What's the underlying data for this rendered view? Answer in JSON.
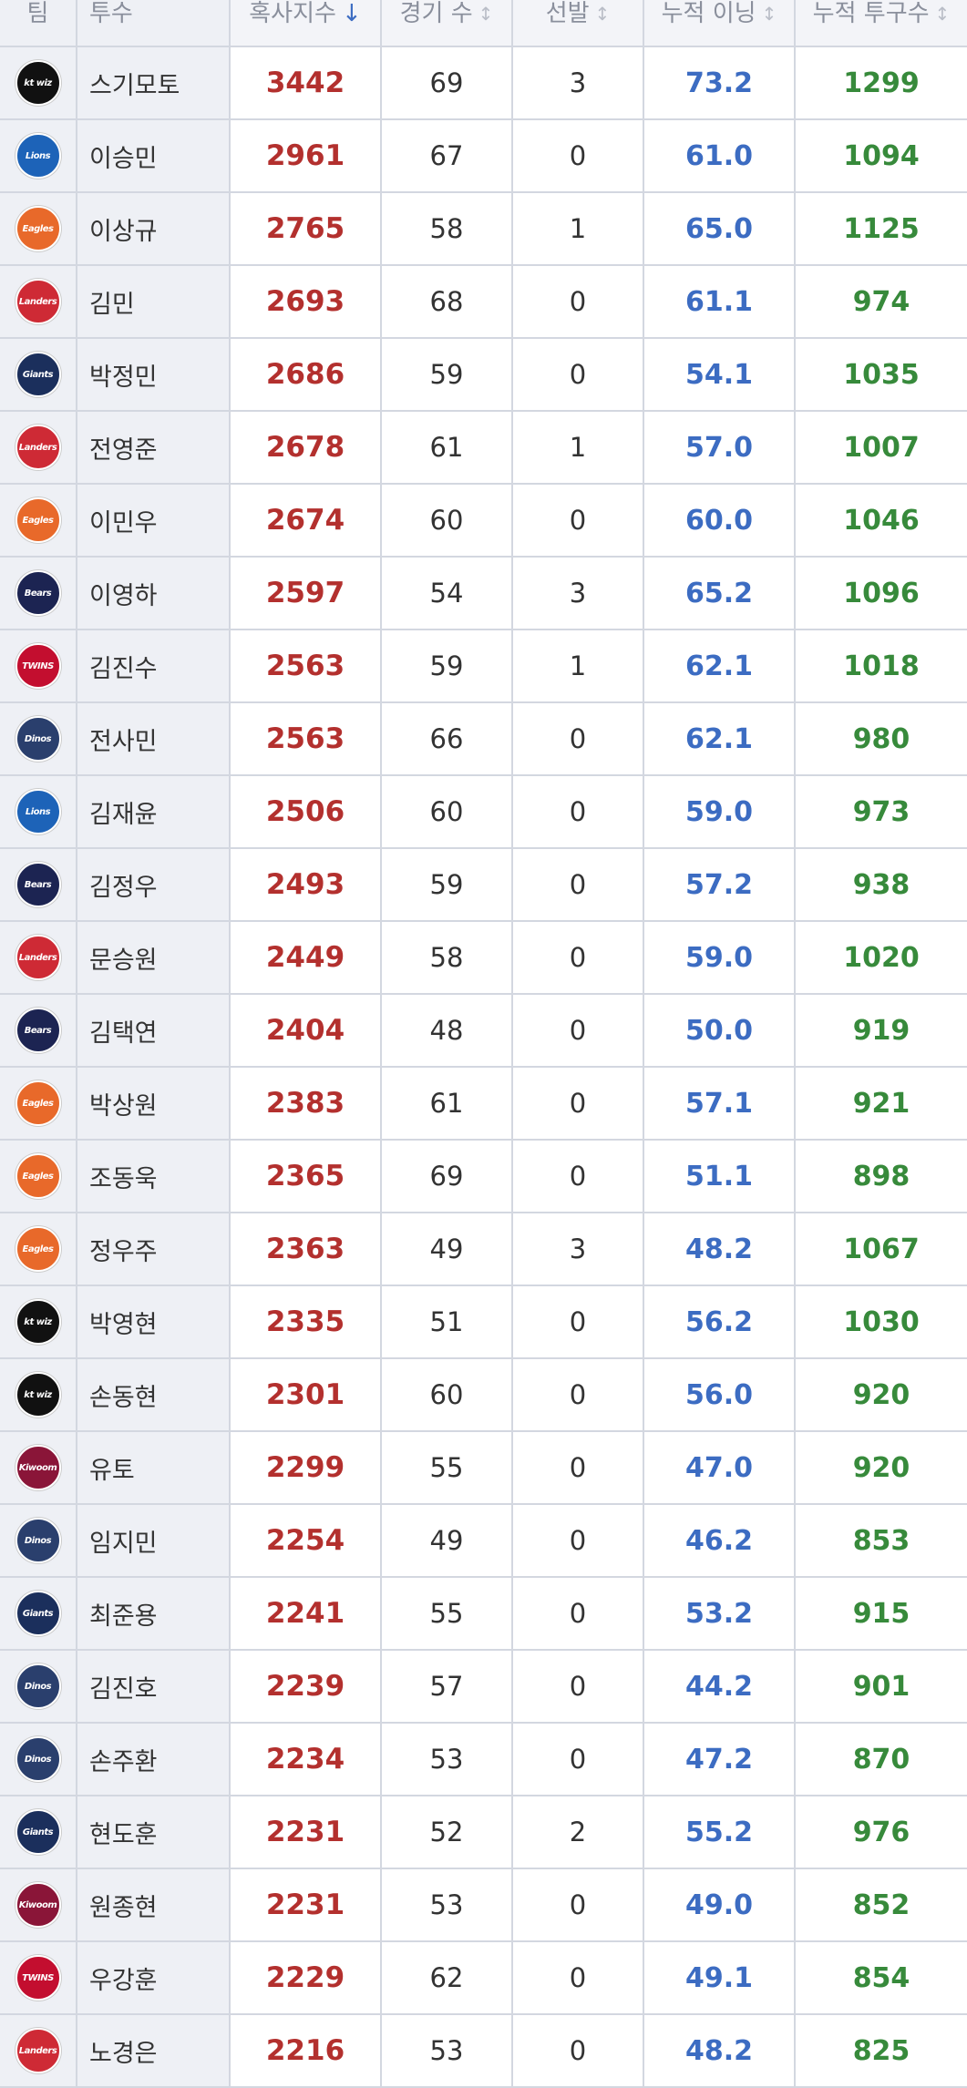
{
  "header": [
    "팀",
    "투수",
    "혹사지수",
    "경기 수",
    "선발",
    "누적 이닝",
    "누적 투구수"
  ],
  "rows": [
    {
      "team": "kt wiz",
      "team_color": "#111111",
      "pitcher": "스기모토",
      "abuse_index": 3442,
      "games": 69,
      "starts": 3,
      "innings": "73.2",
      "pitches": 1299
    },
    {
      "team": "Lions",
      "team_color": "#1d63b8",
      "pitcher": "이승민",
      "abuse_index": 2961,
      "games": 67,
      "starts": 0,
      "innings": "61.0",
      "pitches": 1094
    },
    {
      "team": "Eagles",
      "team_color": "#e8692a",
      "pitcher": "이상규",
      "abuse_index": 2765,
      "games": 58,
      "starts": 1,
      "innings": "65.0",
      "pitches": 1125
    },
    {
      "team": "Landers",
      "team_color": "#ce2a35",
      "pitcher": "김민",
      "abuse_index": 2693,
      "games": 68,
      "starts": 0,
      "innings": "61.1",
      "pitches": 974
    },
    {
      "team": "Giants",
      "team_color": "#1b2f5c",
      "pitcher": "박정민",
      "abuse_index": 2686,
      "games": 59,
      "starts": 0,
      "innings": "54.1",
      "pitches": 1035
    },
    {
      "team": "Landers",
      "team_color": "#ce2a35",
      "pitcher": "전영준",
      "abuse_index": 2678,
      "games": 61,
      "starts": 1,
      "innings": "57.0",
      "pitches": 1007
    },
    {
      "team": "Eagles",
      "team_color": "#e8692a",
      "pitcher": "이민우",
      "abuse_index": 2674,
      "games": 60,
      "starts": 0,
      "innings": "60.0",
      "pitches": 1046
    },
    {
      "team": "Bears",
      "team_color": "#1c2452",
      "pitcher": "이영하",
      "abuse_index": 2597,
      "games": 54,
      "starts": 3,
      "innings": "65.2",
      "pitches": 1096
    },
    {
      "team": "TWINS",
      "team_color": "#c30e2f",
      "pitcher": "김진수",
      "abuse_index": 2563,
      "games": 59,
      "starts": 1,
      "innings": "62.1",
      "pitches": 1018
    },
    {
      "team": "Dinos",
      "team_color": "#2a3f6d",
      "pitcher": "전사민",
      "abuse_index": 2563,
      "games": 66,
      "starts": 0,
      "innings": "62.1",
      "pitches": 980
    },
    {
      "team": "Lions",
      "team_color": "#1d63b8",
      "pitcher": "김재윤",
      "abuse_index": 2506,
      "games": 60,
      "starts": 0,
      "innings": "59.0",
      "pitches": 973
    },
    {
      "team": "Bears",
      "team_color": "#1c2452",
      "pitcher": "김정우",
      "abuse_index": 2493,
      "games": 59,
      "starts": 0,
      "innings": "57.2",
      "pitches": 938
    },
    {
      "team": "Landers",
      "team_color": "#ce2a35",
      "pitcher": "문승원",
      "abuse_index": 2449,
      "games": 58,
      "starts": 0,
      "innings": "59.0",
      "pitches": 1020
    },
    {
      "team": "Bears",
      "team_color": "#1c2452",
      "pitcher": "김택연",
      "abuse_index": 2404,
      "games": 48,
      "starts": 0,
      "innings": "50.0",
      "pitches": 919
    },
    {
      "team": "Eagles",
      "team_color": "#e8692a",
      "pitcher": "박상원",
      "abuse_index": 2383,
      "games": 61,
      "starts": 0,
      "innings": "57.1",
      "pitches": 921
    },
    {
      "team": "Eagles",
      "team_color": "#e8692a",
      "pitcher": "조동욱",
      "abuse_index": 2365,
      "games": 69,
      "starts": 0,
      "innings": "51.1",
      "pitches": 898
    },
    {
      "team": "Eagles",
      "team_color": "#e8692a",
      "pitcher": "정우주",
      "abuse_index": 2363,
      "games": 49,
      "starts": 3,
      "innings": "48.2",
      "pitches": 1067
    },
    {
      "team": "kt wiz",
      "team_color": "#111111",
      "pitcher": "박영현",
      "abuse_index": 2335,
      "games": 51,
      "starts": 0,
      "innings": "56.2",
      "pitches": 1030
    },
    {
      "team": "kt wiz",
      "team_color": "#111111",
      "pitcher": "손동현",
      "abuse_index": 2301,
      "games": 60,
      "starts": 0,
      "innings": "56.0",
      "pitches": 920
    },
    {
      "team": "Kiwoom",
      "team_color": "#8a1538",
      "pitcher": "유토",
      "abuse_index": 2299,
      "games": 55,
      "starts": 0,
      "innings": "47.0",
      "pitches": 920
    },
    {
      "team": "Dinos",
      "team_color": "#2a3f6d",
      "pitcher": "임지민",
      "abuse_index": 2254,
      "games": 49,
      "starts": 0,
      "innings": "46.2",
      "pitches": 853
    },
    {
      "team": "Giants",
      "team_color": "#1b2f5c",
      "pitcher": "최준용",
      "abuse_index": 2241,
      "games": 55,
      "starts": 0,
      "innings": "53.2",
      "pitches": 915
    },
    {
      "team": "Dinos",
      "team_color": "#2a3f6d",
      "pitcher": "김진호",
      "abuse_index": 2239,
      "games": 57,
      "starts": 0,
      "innings": "44.2",
      "pitches": 901
    },
    {
      "team": "Dinos",
      "team_color": "#2a3f6d",
      "pitcher": "손주환",
      "abuse_index": 2234,
      "games": 53,
      "starts": 0,
      "innings": "47.2",
      "pitches": 870
    },
    {
      "team": "Giants",
      "team_color": "#1b2f5c",
      "pitcher": "현도훈",
      "abuse_index": 2231,
      "games": 52,
      "starts": 2,
      "innings": "55.2",
      "pitches": 976
    },
    {
      "team": "Kiwoom",
      "team_color": "#8a1538",
      "pitcher": "원종현",
      "abuse_index": 2231,
      "games": 53,
      "starts": 0,
      "innings": "49.0",
      "pitches": 852
    },
    {
      "team": "TWINS",
      "team_color": "#c30e2f",
      "pitcher": "우강훈",
      "abuse_index": 2229,
      "games": 62,
      "starts": 0,
      "innings": "49.1",
      "pitches": 854
    },
    {
      "team": "Landers",
      "team_color": "#ce2a35",
      "pitcher": "노경은",
      "abuse_index": 2216,
      "games": 53,
      "starts": 0,
      "innings": "48.2",
      "pitches": 825
    }
  ]
}
